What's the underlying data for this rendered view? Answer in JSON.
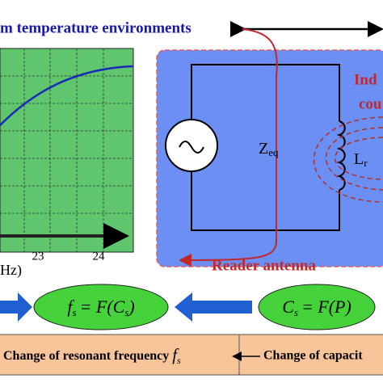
{
  "header": {
    "title": "m temperature environments"
  },
  "plot": {
    "ticks": [
      "23",
      "24"
    ],
    "axis_unit": "Hz)"
  },
  "circuit": {
    "coupling_line1": "Ind",
    "coupling_line2": "cou",
    "impedance": "Z",
    "impedance_sub": "eq",
    "inductor": "L",
    "inductor_sub": "r",
    "antenna_label": "Reader antenna"
  },
  "formulas": [
    {
      "var": "f",
      "var_sub": "s",
      "rhs": "= F(C",
      "rhs_sub": "s",
      "close": ")"
    },
    {
      "var": "C",
      "var_sub": "s",
      "rhs": "= F(P)"
    }
  ],
  "footer": {
    "left": "Change of resonant frequency ",
    "left_var": "f",
    "left_sub": "s",
    "right": "Change of capacit"
  }
}
